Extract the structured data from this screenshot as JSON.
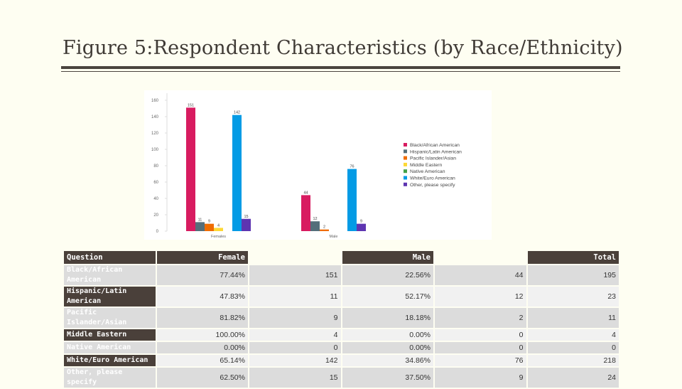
{
  "title": "Figure 5:Respondent Characteristics (by Race/Ethnicity)",
  "chart_data": {
    "type": "bar",
    "categories": [
      "Females",
      "Male"
    ],
    "ylim": [
      0,
      160
    ],
    "yticks": [
      0,
      20,
      40,
      60,
      80,
      100,
      120,
      140,
      160
    ],
    "series": [
      {
        "name": "Black/African American",
        "color": "#d81b60",
        "values": [
          151,
          44
        ]
      },
      {
        "name": "Hispanic/Latin American",
        "color": "#546e7a",
        "values": [
          11,
          12
        ]
      },
      {
        "name": "Pacific Islander/Asian",
        "color": "#ef6c00",
        "values": [
          9,
          2
        ]
      },
      {
        "name": "Middle Eastern",
        "color": "#fdd835",
        "values": [
          4,
          0
        ]
      },
      {
        "name": "Native American",
        "color": "#43a047",
        "values": [
          0,
          0
        ]
      },
      {
        "name": "White/Euro American",
        "color": "#039be5",
        "values": [
          142,
          76
        ]
      },
      {
        "name": "Other, please specify",
        "color": "#5e35b1",
        "values": [
          15,
          9
        ]
      }
    ],
    "legend_position": "right"
  },
  "table": {
    "headers": [
      "Question",
      "Female",
      "",
      "Male",
      "",
      "Total"
    ],
    "rows": [
      {
        "question": "Black/African American",
        "female_pct": "77.44%",
        "female_n": "151",
        "male_pct": "22.56%",
        "male_n": "44",
        "total": "195"
      },
      {
        "question": "Hispanic/Latin American",
        "female_pct": "47.83%",
        "female_n": "11",
        "male_pct": "52.17%",
        "male_n": "12",
        "total": "23"
      },
      {
        "question": "Pacific Islander/Asian",
        "female_pct": "81.82%",
        "female_n": "9",
        "male_pct": "18.18%",
        "male_n": "2",
        "total": "11"
      },
      {
        "question": "Middle Eastern",
        "female_pct": "100.00%",
        "female_n": "4",
        "male_pct": "0.00%",
        "male_n": "0",
        "total": "4"
      },
      {
        "question": "Native American",
        "female_pct": "0.00%",
        "female_n": "0",
        "male_pct": "0.00%",
        "male_n": "0",
        "total": "0"
      },
      {
        "question": "White/Euro American",
        "female_pct": "65.14%",
        "female_n": "142",
        "male_pct": "34.86%",
        "male_n": "76",
        "total": "218"
      },
      {
        "question": "Other, please specify",
        "female_pct": "62.50%",
        "female_n": "15",
        "male_pct": "37.50%",
        "male_n": "9",
        "total": "24"
      }
    ]
  }
}
